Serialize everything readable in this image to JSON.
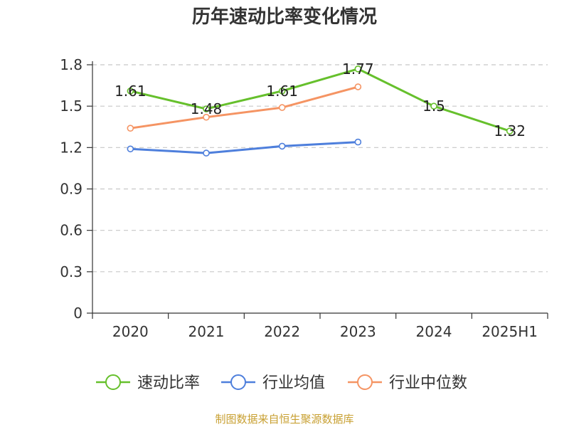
{
  "chart_data": {
    "type": "line",
    "title": "历年速动比率变化情况",
    "categories": [
      "2020",
      "2021",
      "2022",
      "2023",
      "2024",
      "2025H1"
    ],
    "ylim": [
      0,
      1.8
    ],
    "yticks": [
      "0",
      "0.3",
      "0.6",
      "0.9",
      "1.2",
      "1.5",
      "1.8"
    ],
    "grid": true,
    "legend_position": "bottom",
    "series": [
      {
        "name": "速动比率",
        "color": "#66c02c",
        "values": [
          1.61,
          1.48,
          1.61,
          1.77,
          1.5,
          1.32
        ],
        "labels": [
          "1.61",
          "1.48",
          "1.61",
          "1.77",
          "1.5",
          "1.32"
        ]
      },
      {
        "name": "行业均值",
        "color": "#4e7fdc",
        "values": [
          1.19,
          1.16,
          1.21,
          1.24,
          null,
          null
        ]
      },
      {
        "name": "行业中位数",
        "color": "#f59463",
        "values": [
          1.34,
          1.42,
          1.49,
          1.64,
          null,
          null
        ]
      }
    ]
  },
  "footer": {
    "source": "制图数据来自恒生聚源数据库"
  }
}
